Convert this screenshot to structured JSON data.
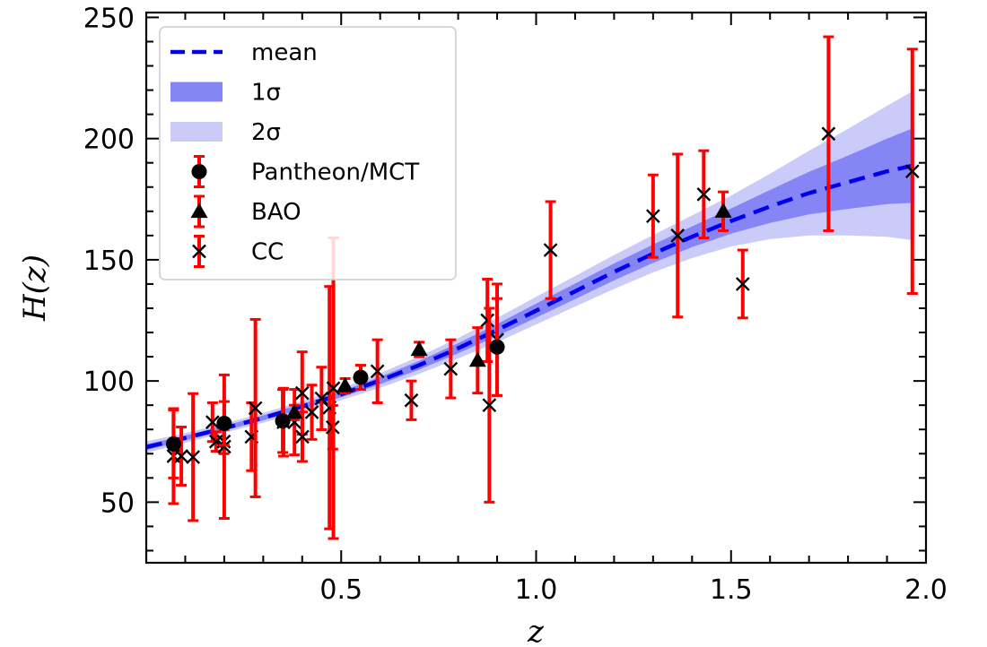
{
  "chart_data": {
    "type": "scatter",
    "xlabel": "z",
    "ylabel": "H(z)",
    "xlim": [
      0.0,
      2.0
    ],
    "ylim": [
      25,
      252
    ],
    "x_ticks": [
      "0.5",
      "1.0",
      "1.5",
      "2.0"
    ],
    "y_ticks": [
      "50",
      "100",
      "150",
      "200",
      "250"
    ],
    "legend": {
      "position": "top-left",
      "entries": [
        "mean",
        "1σ",
        "2σ",
        "Pantheon/MCT",
        "BAO",
        "CC"
      ]
    },
    "colors": {
      "mean": "#0000ee",
      "band_1sigma": "#8585f6",
      "band_2sigma": "#cbcbfa",
      "errorbar": "#ff0000",
      "marker": "#000000"
    },
    "reconstruction": {
      "z": [
        0.0,
        0.1,
        0.2,
        0.3,
        0.4,
        0.5,
        0.6,
        0.7,
        0.8,
        0.9,
        1.0,
        1.1,
        1.2,
        1.3,
        1.4,
        1.5,
        1.6,
        1.7,
        1.8,
        1.9,
        1.97
      ],
      "mean": [
        72.7,
        76.5,
        80.5,
        84.8,
        89.5,
        94.5,
        100.2,
        106.5,
        113.5,
        121,
        129,
        137,
        145,
        152.5,
        159.5,
        166,
        172,
        177.5,
        182,
        186.5,
        189
      ],
      "sigma1": [
        1.2,
        1.0,
        1.0,
        1.0,
        1.1,
        1.2,
        1.5,
        1.8,
        2.1,
        2.5,
        2.9,
        3.2,
        3.5,
        3.8,
        4.3,
        5.2,
        6.8,
        8.8,
        11.0,
        13.5,
        15.5
      ],
      "sigma2": [
        2.4,
        2.0,
        1.9,
        2.0,
        2.2,
        2.4,
        3.0,
        3.6,
        4.2,
        5.0,
        5.7,
        6.3,
        7.0,
        7.7,
        8.8,
        10.5,
        13.5,
        17.5,
        22.0,
        27.0,
        31.0
      ]
    },
    "series": [
      {
        "name": "Pantheon/MCT",
        "marker": "circle",
        "points": [
          {
            "x": 0.07,
            "y": 74,
            "err": 14
          },
          {
            "x": 0.2,
            "y": 82.5,
            "err": 9
          },
          {
            "x": 0.35,
            "y": 83.5,
            "err": 13
          },
          {
            "x": 0.55,
            "y": 101.5,
            "err": 5
          },
          {
            "x": 0.9,
            "y": 114,
            "err": 20
          }
        ]
      },
      {
        "name": "BAO",
        "marker": "triangle",
        "points": [
          {
            "x": 0.38,
            "y": 87,
            "err": 3
          },
          {
            "x": 0.51,
            "y": 98,
            "err": 3
          },
          {
            "x": 0.7,
            "y": 113,
            "err": 3
          },
          {
            "x": 0.85,
            "y": 108.5,
            "err": 13.5
          },
          {
            "x": 1.48,
            "y": 170,
            "err": 8
          }
        ]
      },
      {
        "name": "CC",
        "marker": "x",
        "points": [
          {
            "x": 0.07,
            "y": 69,
            "err": 19.6
          },
          {
            "x": 0.09,
            "y": 69,
            "err": 12
          },
          {
            "x": 0.12,
            "y": 68.6,
            "err": 26.2
          },
          {
            "x": 0.17,
            "y": 83,
            "err": 8
          },
          {
            "x": 0.179,
            "y": 75,
            "err": 4
          },
          {
            "x": 0.199,
            "y": 75,
            "err": 5
          },
          {
            "x": 0.2,
            "y": 72.9,
            "err": 29.6
          },
          {
            "x": 0.27,
            "y": 77,
            "err": 14
          },
          {
            "x": 0.28,
            "y": 88.8,
            "err": 36.6
          },
          {
            "x": 0.352,
            "y": 83,
            "err": 14
          },
          {
            "x": 0.3802,
            "y": 83,
            "err": 13.5
          },
          {
            "x": 0.4,
            "y": 95,
            "err": 17
          },
          {
            "x": 0.4004,
            "y": 77,
            "err": 10.2
          },
          {
            "x": 0.4247,
            "y": 87.1,
            "err": 11.2
          },
          {
            "x": 0.4497,
            "y": 92.8,
            "err": 12.9
          },
          {
            "x": 0.47,
            "y": 89,
            "err": 50
          },
          {
            "x": 0.4783,
            "y": 80.9,
            "err": 9
          },
          {
            "x": 0.48,
            "y": 97,
            "err": 62
          },
          {
            "x": 0.593,
            "y": 104,
            "err": 13
          },
          {
            "x": 0.68,
            "y": 92,
            "err": 8
          },
          {
            "x": 0.781,
            "y": 105,
            "err": 12
          },
          {
            "x": 0.875,
            "y": 125,
            "err": 17
          },
          {
            "x": 0.88,
            "y": 90,
            "err": 40
          },
          {
            "x": 0.9,
            "y": 117,
            "err": 23
          },
          {
            "x": 1.037,
            "y": 154,
            "err": 20
          },
          {
            "x": 1.3,
            "y": 168,
            "err": 17
          },
          {
            "x": 1.363,
            "y": 160,
            "err": 33.6
          },
          {
            "x": 1.43,
            "y": 177,
            "err": 18
          },
          {
            "x": 1.53,
            "y": 140,
            "err": 14
          },
          {
            "x": 1.75,
            "y": 202,
            "err": 40
          },
          {
            "x": 1.965,
            "y": 186.5,
            "err": 50.4
          }
        ]
      }
    ]
  }
}
